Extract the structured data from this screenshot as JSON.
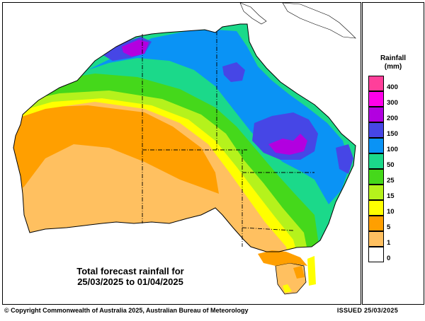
{
  "map": {
    "title_line1": "Total forecast rainfall for",
    "title_line2": "25/03/2025 to 01/04/2025"
  },
  "legend": {
    "title_line1": "Rainfall",
    "title_line2": "(mm)",
    "bins": [
      {
        "label": "400",
        "color": "#ff3f9a"
      },
      {
        "label": "300",
        "color": "#ff00ea"
      },
      {
        "label": "200",
        "color": "#b200e0"
      },
      {
        "label": "150",
        "color": "#4646e6"
      },
      {
        "label": "100",
        "color": "#0a93f5"
      },
      {
        "label": "50",
        "color": "#1bd98a"
      },
      {
        "label": "25",
        "color": "#45d81b"
      },
      {
        "label": "15",
        "color": "#b5f21c"
      },
      {
        "label": "10",
        "color": "#ffff00"
      },
      {
        "label": "5",
        "color": "#ff9f00"
      },
      {
        "label": "1",
        "color": "#ffc060"
      },
      {
        "label": "0",
        "color": "#ffffff"
      }
    ]
  },
  "footer": {
    "copyright": "© Copyright Commonwealth of Australia 2025, Australian Bureau of Meteorology",
    "issued": "ISSUED 25/03/2025"
  }
}
